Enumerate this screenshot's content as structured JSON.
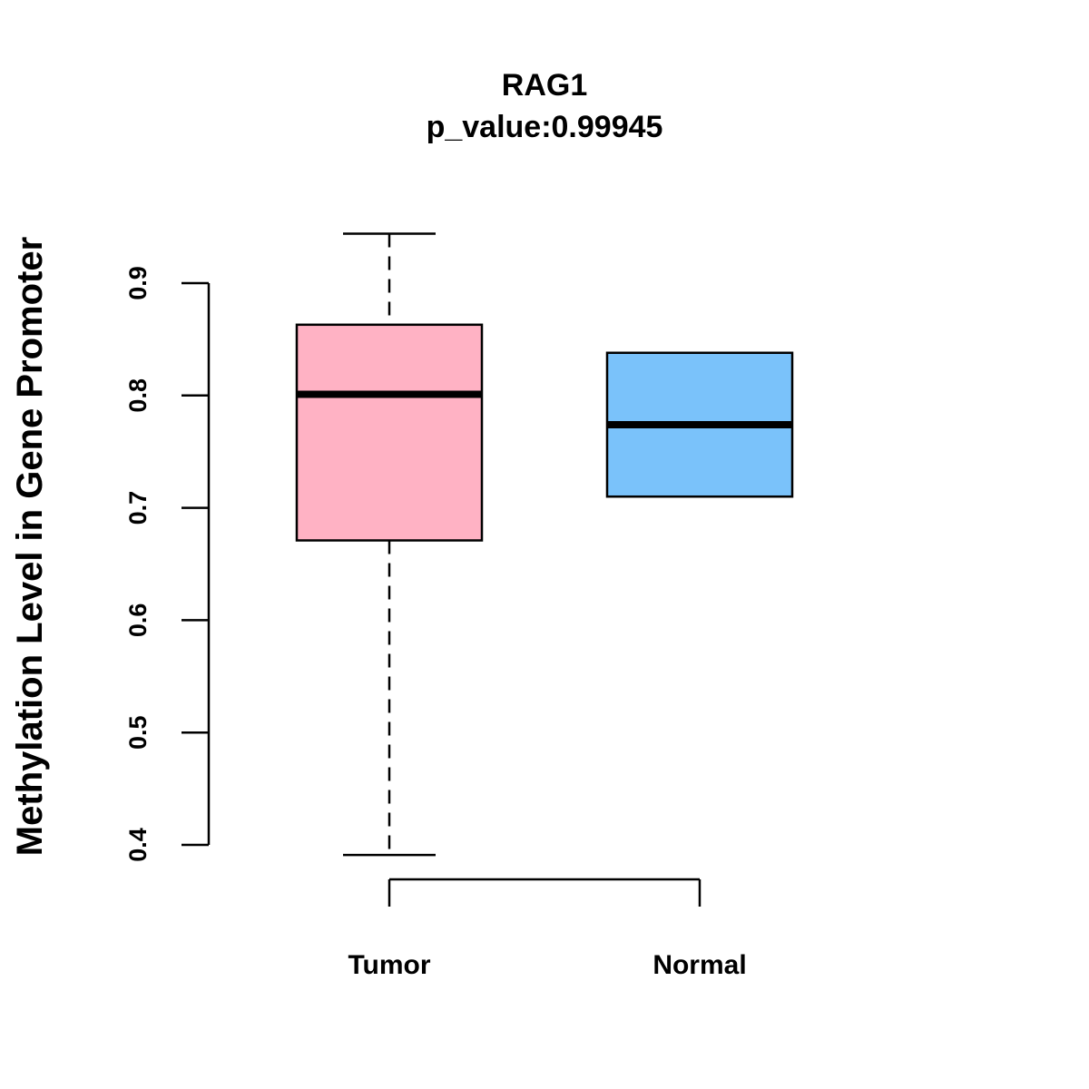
{
  "chart_data": {
    "type": "boxplot",
    "title": "RAG1",
    "subtitle": "p_value:0.99945",
    "xlabel": "",
    "ylabel": "Methylation Level in Gene Promoter",
    "yticks": [
      "0.4",
      "0.5",
      "0.6",
      "0.7",
      "0.8",
      "0.9"
    ],
    "ylim": [
      0.4,
      0.9
    ],
    "grid": false,
    "categories": [
      "Tumor",
      "Normal"
    ],
    "boxes": [
      {
        "name": "Tumor",
        "whisker_low": 0.391,
        "q1": 0.671,
        "median": 0.801,
        "q3": 0.863,
        "whisker_high": 0.944,
        "color": "#FFB2C4"
      },
      {
        "name": "Normal",
        "whisker_low": 0.71,
        "q1": 0.71,
        "median": 0.774,
        "q3": 0.838,
        "whisker_high": 0.838,
        "color": "#7AC2FA"
      }
    ]
  }
}
